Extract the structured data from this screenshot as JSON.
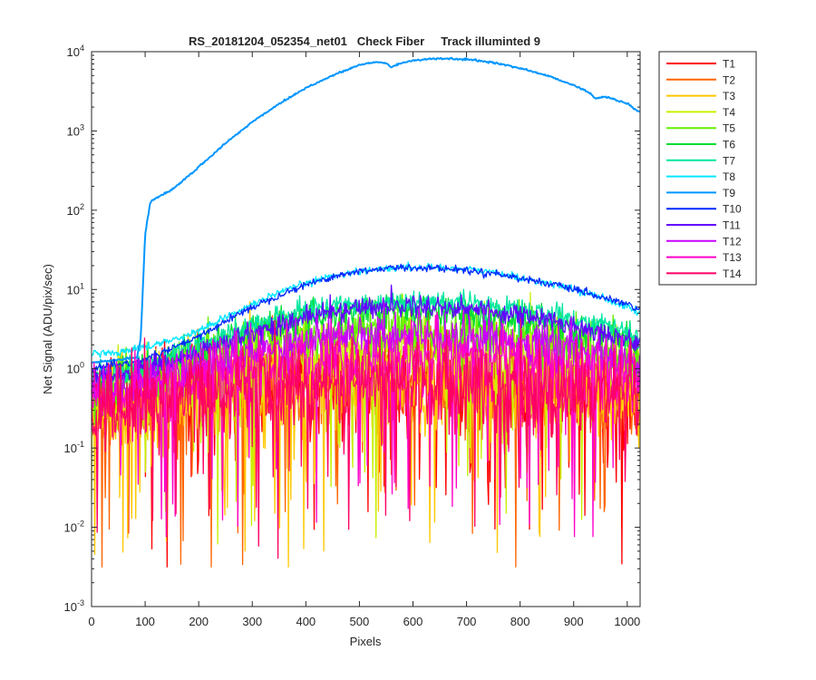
{
  "chart_data": {
    "type": "line",
    "title": "RS_20181204_052354_net01   Check Fiber     Track illuminted 9",
    "xlabel": "Pixels",
    "ylabel": "Net Signal (ADU/pix/sec)",
    "xlim": [
      0,
      1024
    ],
    "ylim": [
      0.001,
      10000
    ],
    "yscale": "log",
    "grid": false,
    "legend_position": "outside-right",
    "x_ticks": [
      "0",
      "100",
      "200",
      "300",
      "400",
      "500",
      "600",
      "700",
      "800",
      "900",
      "1000"
    ],
    "x_tick_values": [
      0,
      100,
      200,
      300,
      400,
      500,
      600,
      700,
      800,
      900,
      1000
    ],
    "y_ticks": [
      {
        "base": "10",
        "exp": "-3",
        "value": 0.001
      },
      {
        "base": "10",
        "exp": "-2",
        "value": 0.01
      },
      {
        "base": "10",
        "exp": "-1",
        "value": 0.1
      },
      {
        "base": "10",
        "exp": "0",
        "value": 1
      },
      {
        "base": "10",
        "exp": "1",
        "value": 10
      },
      {
        "base": "10",
        "exp": "2",
        "value": 100
      },
      {
        "base": "10",
        "exp": "3",
        "value": 1000
      },
      {
        "base": "10",
        "exp": "4",
        "value": 10000
      }
    ],
    "series": [
      {
        "name": "T1",
        "color": "#ff0000",
        "x": [
          0,
          50,
          100,
          150,
          200,
          300,
          400,
          500,
          600,
          700,
          800,
          900,
          1000,
          1024
        ],
        "y": [
          0.3,
          0.35,
          0.4,
          0.45,
          0.5,
          0.6,
          0.65,
          0.7,
          0.7,
          0.65,
          0.6,
          0.5,
          0.4,
          0.35
        ]
      },
      {
        "name": "T2",
        "color": "#ff6400",
        "x": [
          0,
          50,
          100,
          150,
          200,
          300,
          400,
          500,
          600,
          700,
          800,
          900,
          1000,
          1024
        ],
        "y": [
          0.3,
          0.35,
          0.4,
          0.45,
          0.5,
          0.6,
          0.65,
          0.7,
          0.7,
          0.65,
          0.6,
          0.5,
          0.4,
          0.35
        ]
      },
      {
        "name": "T3",
        "color": "#ffc800",
        "x": [
          0,
          50,
          100,
          150,
          200,
          300,
          400,
          500,
          600,
          700,
          800,
          900,
          1000,
          1024
        ],
        "y": [
          0.3,
          0.35,
          0.4,
          0.45,
          0.5,
          0.6,
          0.65,
          0.7,
          0.7,
          0.65,
          0.6,
          0.5,
          0.4,
          0.35
        ]
      },
      {
        "name": "T4",
        "color": "#c8f000",
        "x": [
          0,
          50,
          100,
          150,
          200,
          300,
          400,
          500,
          600,
          700,
          800,
          900,
          1000,
          1024
        ],
        "y": [
          0.4,
          0.45,
          0.55,
          0.7,
          0.9,
          1.2,
          1.5,
          1.7,
          1.7,
          1.6,
          1.4,
          1.2,
          0.9,
          0.8
        ]
      },
      {
        "name": "T5",
        "color": "#64f000",
        "x": [
          0,
          50,
          100,
          150,
          200,
          300,
          400,
          500,
          600,
          700,
          800,
          900,
          1000,
          1024
        ],
        "y": [
          0.5,
          0.6,
          0.8,
          1.0,
          1.3,
          2.0,
          2.6,
          3.0,
          3.0,
          2.8,
          2.5,
          2.0,
          1.5,
          1.3
        ]
      },
      {
        "name": "T6",
        "color": "#00dc32",
        "x": [
          0,
          50,
          100,
          150,
          200,
          300,
          400,
          500,
          600,
          700,
          800,
          900,
          1000,
          1024
        ],
        "y": [
          0.7,
          0.8,
          1.0,
          1.3,
          1.8,
          3.0,
          4.5,
          5.5,
          5.5,
          5.0,
          4.2,
          3.3,
          2.4,
          2.0
        ]
      },
      {
        "name": "T7",
        "color": "#00e6a0",
        "x": [
          0,
          50,
          100,
          150,
          200,
          300,
          400,
          500,
          600,
          700,
          800,
          900,
          1000,
          1024
        ],
        "y": [
          0.8,
          0.9,
          1.1,
          1.5,
          2.0,
          3.5,
          5.5,
          6.8,
          7.0,
          6.5,
          5.5,
          4.3,
          3.0,
          2.5
        ]
      },
      {
        "name": "T8",
        "color": "#00e6ff",
        "x": [
          0,
          50,
          100,
          150,
          200,
          250,
          300,
          350,
          400,
          450,
          500,
          550,
          600,
          650,
          700,
          750,
          800,
          850,
          900,
          950,
          1000,
          1024
        ],
        "y": [
          1.5,
          1.6,
          1.9,
          2.3,
          3.0,
          4.5,
          6.5,
          9.0,
          12.0,
          15.0,
          17.0,
          18.5,
          19.0,
          19.0,
          18.0,
          16.5,
          14.0,
          12.0,
          10.0,
          8.0,
          6.0,
          5.0
        ]
      },
      {
        "name": "T9",
        "color": "#0096ff",
        "x": [
          0,
          50,
          85,
          92,
          100,
          110,
          150,
          200,
          250,
          300,
          350,
          400,
          450,
          500,
          530,
          550,
          560,
          570,
          600,
          650,
          700,
          750,
          800,
          850,
          900,
          930,
          940,
          960,
          1000,
          1024
        ],
        "y": [
          1.2,
          1.3,
          1.4,
          2.5,
          50,
          130,
          180,
          350,
          700,
          1300,
          2200,
          3500,
          5000,
          6800,
          7400,
          7200,
          6300,
          6900,
          7800,
          8200,
          8000,
          7300,
          6200,
          5000,
          3800,
          3000,
          2600,
          2700,
          2200,
          1700
        ]
      },
      {
        "name": "T10",
        "color": "#0028ff",
        "x": [
          0,
          50,
          100,
          150,
          200,
          250,
          300,
          350,
          400,
          450,
          500,
          550,
          600,
          650,
          700,
          750,
          800,
          850,
          900,
          950,
          1000,
          1024
        ],
        "y": [
          1.0,
          1.1,
          1.3,
          1.8,
          2.5,
          4.0,
          6.0,
          8.5,
          11.5,
          14.5,
          17.0,
          18.5,
          19.0,
          18.5,
          17.5,
          16.0,
          14.0,
          12.0,
          10.0,
          8.0,
          6.5,
          5.5
        ]
      },
      {
        "name": "T11",
        "color": "#6400ff",
        "x": [
          0,
          50,
          100,
          150,
          200,
          300,
          400,
          500,
          600,
          700,
          800,
          900,
          1000,
          1024
        ],
        "y": [
          0.7,
          0.8,
          1.0,
          1.2,
          1.6,
          2.8,
          4.5,
          6.0,
          6.3,
          5.8,
          4.8,
          3.5,
          2.4,
          2.0
        ]
      },
      {
        "name": "T12",
        "color": "#c800ff",
        "x": [
          0,
          50,
          100,
          150,
          200,
          300,
          400,
          500,
          600,
          700,
          800,
          900,
          1000,
          1024
        ],
        "y": [
          0.5,
          0.55,
          0.7,
          0.85,
          1.0,
          1.6,
          2.3,
          2.8,
          2.8,
          2.6,
          2.2,
          1.7,
          1.2,
          1.0
        ]
      },
      {
        "name": "T13",
        "color": "#ff00c8",
        "x": [
          0,
          50,
          100,
          150,
          200,
          300,
          400,
          500,
          600,
          700,
          800,
          900,
          1000,
          1024
        ],
        "y": [
          0.4,
          0.45,
          0.55,
          0.65,
          0.8,
          1.0,
          1.2,
          1.3,
          1.3,
          1.2,
          1.1,
          0.9,
          0.7,
          0.6
        ]
      },
      {
        "name": "T14",
        "color": "#ff0064",
        "x": [
          0,
          50,
          100,
          150,
          200,
          300,
          400,
          500,
          600,
          700,
          800,
          900,
          1000,
          1024
        ],
        "y": [
          0.3,
          0.35,
          0.4,
          0.45,
          0.5,
          0.6,
          0.65,
          0.7,
          0.7,
          0.65,
          0.6,
          0.5,
          0.4,
          0.35
        ]
      }
    ]
  }
}
